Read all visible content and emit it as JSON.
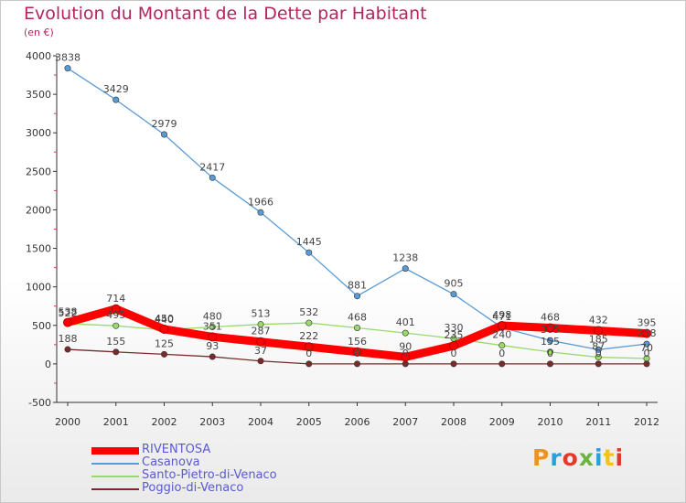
{
  "header": {
    "title": "Evolution du Montant de la Dette par Habitant",
    "unit": "(en €)"
  },
  "brand": {
    "text": "Proxiti",
    "colors": [
      "#f0931e",
      "#2a9fd8",
      "#e03a2b",
      "#6cb33f",
      "#2a9fd8",
      "#f0c419",
      "#e03a2b"
    ]
  },
  "chart_data": {
    "type": "line",
    "x": [
      "2000",
      "2001",
      "2002",
      "2003",
      "2004",
      "2005",
      "2006",
      "2007",
      "2008",
      "2009",
      "2010",
      "2011",
      "2012"
    ],
    "ylim": [
      -500,
      4000
    ],
    "yticks": [
      "-500",
      "0",
      "500",
      "1000",
      "1500",
      "2000",
      "2500",
      "3000",
      "3500",
      "4000"
    ],
    "grid": false,
    "legend_position": "bottom-left",
    "series": [
      {
        "name": "RIVENTOSA",
        "color": "#ff0000",
        "values": [
          538,
          714,
          450,
          351,
          287,
          222,
          156,
          90,
          235,
          498,
          468,
          432,
          395
        ],
        "labels": [
          "538",
          "714",
          "450",
          "351",
          "287",
          "222",
          "156",
          "90",
          "235",
          "498",
          "468",
          "432",
          "395"
        ]
      },
      {
        "name": "Casanova",
        "color": "#5b9bd5",
        "values": [
          3838,
          3429,
          2979,
          2417,
          1966,
          1445,
          881,
          1238,
          905,
          471,
          305,
          185,
          258
        ],
        "labels": [
          "3838",
          "3429",
          "2979",
          "2417",
          "1966",
          "1445",
          "881",
          "1238",
          "905",
          "471",
          "305",
          "185",
          "258"
        ]
      },
      {
        "name": "Santo-Pietro-di-Venaco",
        "color": "#9ad96b",
        "values": [
          522,
          495,
          440,
          480,
          513,
          532,
          468,
          401,
          330,
          240,
          155,
          87,
          70
        ],
        "labels": [
          "522",
          "495",
          "440",
          "480",
          "513",
          "532",
          "468",
          "401",
          "330",
          "240",
          "155",
          "87",
          "70"
        ]
      },
      {
        "name": "Poggio-di-Venaco",
        "color": "#7a2a2a",
        "values": [
          188,
          155,
          125,
          93,
          37,
          0,
          0,
          0,
          0,
          0,
          0,
          0,
          0
        ],
        "labels": [
          "188",
          "155",
          "125",
          "93",
          "37",
          "0",
          "0",
          "0",
          "0",
          "0",
          "0",
          "0",
          "0"
        ]
      }
    ]
  }
}
